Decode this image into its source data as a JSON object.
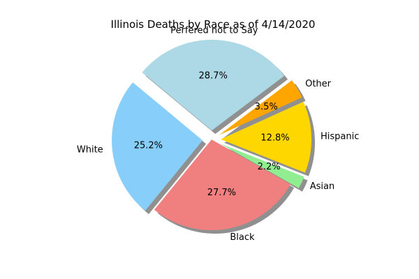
{
  "chart_data": {
    "type": "pie",
    "title": "Illinois Deaths by Race as of 4/14/2020",
    "start_angle_deg": 37,
    "direction": "counterclockwise",
    "shadow": true,
    "grid": false,
    "legend": "none",
    "slices": [
      {
        "label": "Perfered not to Say",
        "value": 28.7,
        "percent_label": "28.7%",
        "color": "#add8e6",
        "explode": 0.1
      },
      {
        "label": "White",
        "value": 25.2,
        "percent_label": "25.2%",
        "color": "#87cefa",
        "explode": 0.1
      },
      {
        "label": "Black",
        "value": 27.7,
        "percent_label": "27.7%",
        "color": "#f08080",
        "explode": 0
      },
      {
        "label": "Asian",
        "value": 2.2,
        "percent_label": "2.2%",
        "color": "#90ee90",
        "explode": 0.1
      },
      {
        "label": "Hispanic",
        "value": 12.8,
        "percent_label": "12.8%",
        "color": "#ffd700",
        "explode": 0.1
      },
      {
        "label": "Other",
        "value": 3.5,
        "percent_label": "3.5%",
        "color": "#ffa500",
        "explode": 0.1
      }
    ]
  }
}
